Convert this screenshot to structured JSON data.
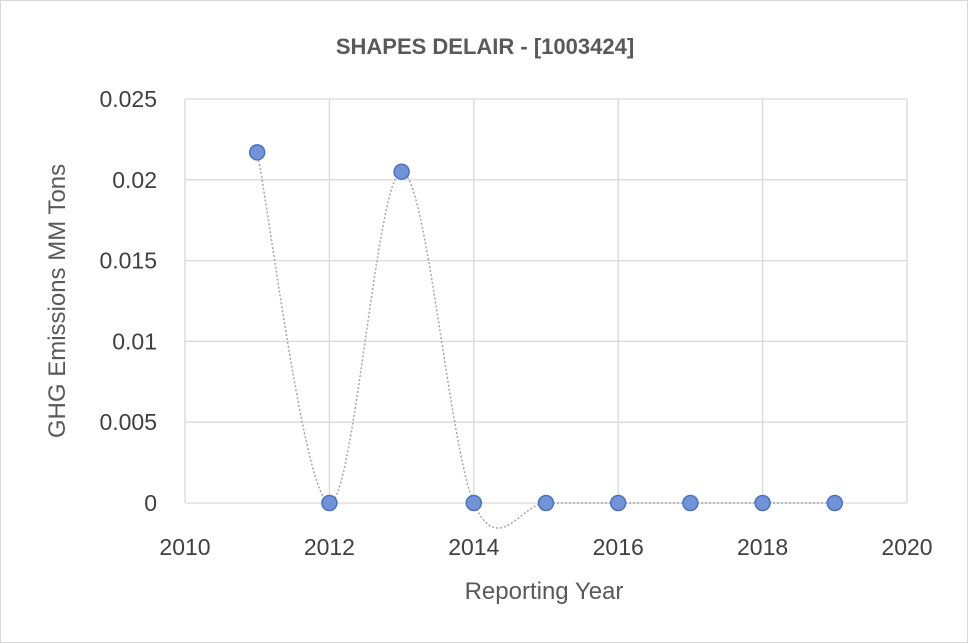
{
  "chart_data": {
    "type": "scatter",
    "title": "SHAPES DELAIR - [1003424]",
    "xlabel": "Reporting Year",
    "ylabel": "GHG Emissions MM Tons",
    "xlim": [
      2010,
      2020
    ],
    "ylim": [
      0,
      0.025
    ],
    "x_ticks": [
      "2010",
      "2012",
      "2014",
      "2016",
      "2018",
      "2020"
    ],
    "y_ticks": [
      "0",
      "0.005",
      "0.01",
      "0.015",
      "0.02",
      "0.025"
    ],
    "grid": true,
    "legend": "none",
    "series": [
      {
        "x": [
          2011,
          2012,
          2013,
          2014,
          2015,
          2016,
          2017,
          2018,
          2019
        ],
        "y": [
          0.0217,
          0,
          0.0205,
          0,
          0,
          0,
          0,
          0,
          0
        ],
        "marker_color": "#7393d8",
        "marker_edge_color": "#4a72c4",
        "line_color": "#a6a6a6",
        "line_style": "dotted-smooth"
      }
    ]
  }
}
